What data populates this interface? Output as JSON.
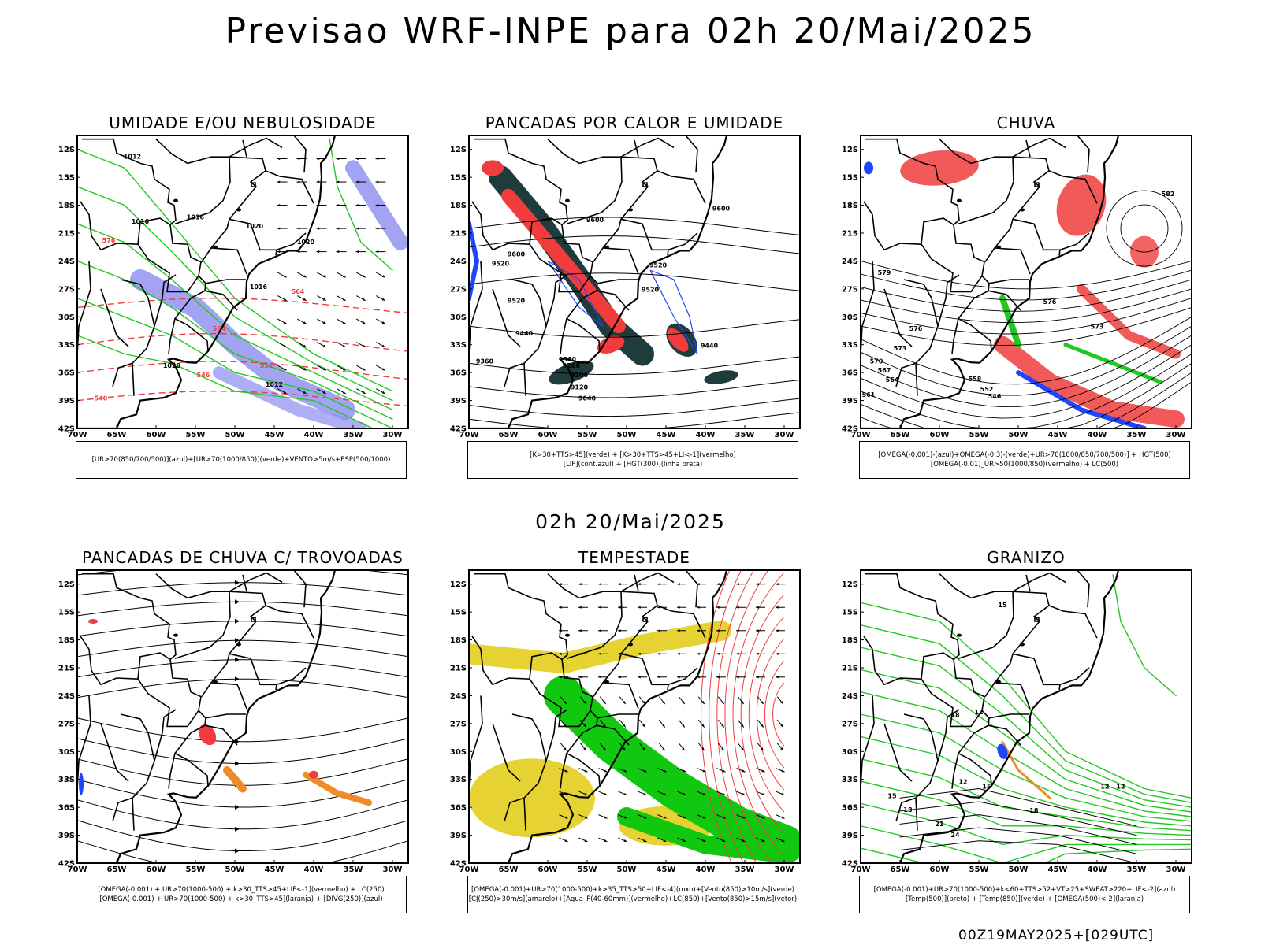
{
  "title": "Previsao WRF-INPE  para 02h 20/Mai/2025",
  "mid_title": "02h 20/Mai/2025",
  "footer": "00Z19MAY2025+[029UTC]",
  "lat_labels": [
    "12S",
    "15S",
    "18S",
    "21S",
    "24S",
    "27S",
    "30S",
    "33S",
    "36S",
    "39S",
    "42S"
  ],
  "lon_labels": [
    "70W",
    "65W",
    "60W",
    "55W",
    "50W",
    "45W",
    "40W",
    "35W",
    "30W"
  ],
  "colors": {
    "humid_green": "#22c822",
    "cloud_blue": "#8c8cf0",
    "red": "#f03c3c",
    "dark_teal": "#1e3c3c",
    "blue": "#1e46ff",
    "yellow": "#e6d232",
    "orange": "#f08c28",
    "bright_green": "#10c810"
  },
  "panels": [
    {
      "id": "umidade",
      "title": "UMIDADE E/OU NEBULOSIDADE",
      "legend": [
        "[UR>70(850/700/500)](azul)+[UR>70(1000/850)](verde)+VENTO>5m/s+ESP(500/1000)"
      ],
      "labels": [
        "1012",
        "1016",
        "1016",
        "1020",
        "1020",
        "1024",
        "1020",
        "1016",
        "1016",
        "1020",
        "1016",
        "1012",
        "576",
        "570",
        "564",
        "558",
        "552",
        "546",
        "540"
      ]
    },
    {
      "id": "pancadas-calor",
      "title": "PANCADAS POR CALOR E UMIDADE",
      "legend": [
        "[K>30+TTS>45](verde) + [K>30+TTS>45+LI<-1](vermelho)",
        "[LIF](cont.azul) + [HGT(300)](linha preta)"
      ],
      "labels": [
        "9600",
        "9600",
        "9520",
        "9520",
        "9520",
        "9440",
        "9440",
        "9360",
        "9360",
        "9280",
        "9200",
        "9120",
        "9040"
      ]
    },
    {
      "id": "chuva",
      "title": "CHUVA",
      "legend": [
        "[OMEGA(-0.001)-(azul)+OMEGA(-0.3)-(verde)+UR>70(1000/850/700/500)] + HGT(500)",
        "[OMEGA(-0.01)_UR>50(1000/850)(vermelho) + LC(500)"
      ],
      "labels": [
        "582",
        "579",
        "576",
        "573",
        "570",
        "567",
        "564",
        "561",
        "558",
        "552",
        "546"
      ]
    },
    {
      "id": "pancadas-trovoadas",
      "title": "PANCADAS DE CHUVA C/ TROVOADAS",
      "legend": [
        "[OMEGA(-0.001) + UR>70(1000-500) + k>30_TTS>45+LIF<-1](vermelho) + LC(250)",
        "[OMEGA(-0.001) + UR>70(1000-500) + k>30_TTS>45](laranja) + [DIVG(250)](azul)"
      ],
      "labels": []
    },
    {
      "id": "tempestade",
      "title": "TEMPESTADE",
      "legend": [
        "[OMEGA(-0.001)+UR>70(1000-500)+k>35_TTS>50+LIF<-4](roxo)+[Vento(850)>10m/s](verde)",
        "[CJ(250)>30m/s](amarelo)+[Agua_P(40-60mm)](vermelho)+LC(850)+[Vento(850)>15m/s](vetor)"
      ],
      "labels": []
    },
    {
      "id": "granizo",
      "title": "GRANIZO",
      "legend": [
        "[OMEGA(-0.001)+UR>70(1000-500)+k<60+TTS>52+VT>25+SWEAT>220+LIF<-2](azul)",
        "[Temp(500)](preto) + [Temp(850)](verde) + [OMEGA(500)<-2](laranja)"
      ],
      "labels": [
        "15",
        "12",
        "12",
        "15",
        "18",
        "21",
        "24",
        "12",
        "12",
        "12",
        "15",
        "18",
        "15",
        "18"
      ]
    }
  ]
}
